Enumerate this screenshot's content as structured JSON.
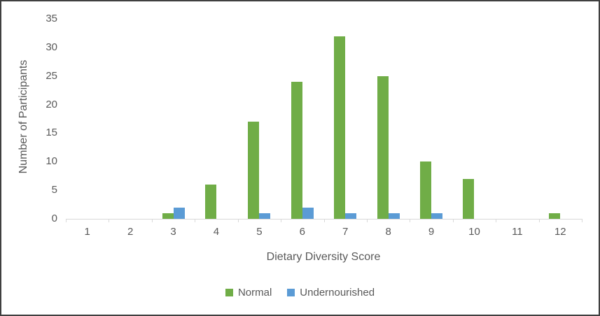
{
  "chart_data": {
    "type": "bar",
    "title": "",
    "xlabel": "Dietary Diversity Score",
    "ylabel": "Number of Participants",
    "categories": [
      "1",
      "2",
      "3",
      "4",
      "5",
      "6",
      "7",
      "8",
      "9",
      "10",
      "11",
      "12"
    ],
    "series": [
      {
        "name": "Normal",
        "color": "#70AD47",
        "values": [
          0,
          0,
          1,
          6,
          17,
          24,
          32,
          25,
          10,
          7,
          0,
          1
        ]
      },
      {
        "name": "Undernourished",
        "color": "#5B9BD5",
        "values": [
          0,
          0,
          2,
          0,
          1,
          2,
          1,
          1,
          1,
          0,
          0,
          0
        ]
      }
    ],
    "ylim": [
      0,
      35
    ],
    "y_ticks": [
      35,
      30,
      25,
      20,
      15,
      10,
      5,
      0
    ],
    "grid": false,
    "legend_position": "bottom",
    "colors": {
      "text": "#595959",
      "axis_line": "#D9D9D9",
      "frame_border": "#3F3F3F",
      "background": "#FFFFFF"
    }
  }
}
